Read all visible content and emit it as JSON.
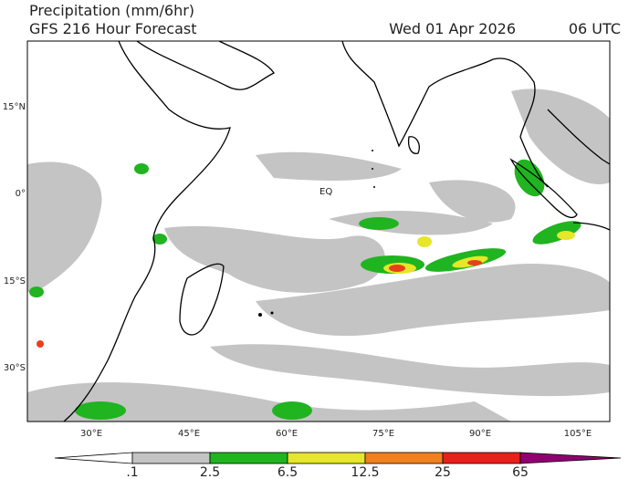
{
  "header": {
    "title": "Precipitation (mm/6hr)",
    "subtitle": "GFS 216 Hour Forecast",
    "date": "Wed 01 Apr 2026",
    "time": "06 UTC"
  },
  "map": {
    "lat_labels": [
      "15°N",
      "0°",
      "15°S",
      "30°S"
    ],
    "lon_labels": [
      "30°E",
      "45°E",
      "60°E",
      "75°E",
      "90°E",
      "105°E"
    ],
    "annotation": "EQ"
  },
  "legend": {
    "labels": [
      ".1",
      "2.5",
      "6.5",
      "12.5",
      "25",
      "65"
    ]
  }
}
